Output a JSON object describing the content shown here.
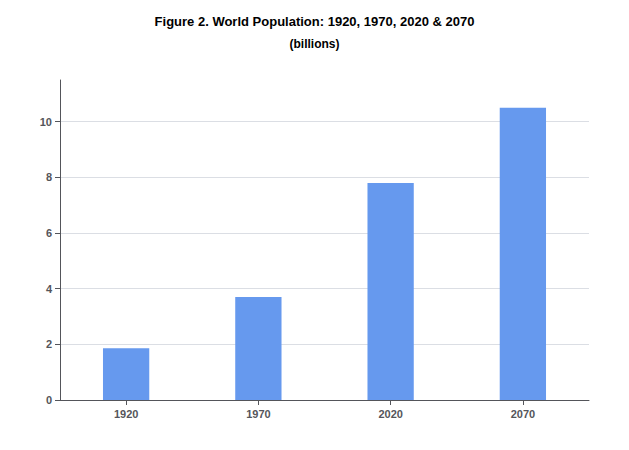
{
  "chart_data": {
    "type": "bar",
    "title": "Figure 2. World Population: 1920, 1970, 2020 & 2070",
    "subtitle": "(billions)",
    "categories": [
      "1920",
      "1970",
      "2020",
      "2070"
    ],
    "values": [
      1.86,
      3.7,
      7.8,
      10.5
    ],
    "color": "#6699ee",
    "ylim": [
      0,
      11.5
    ],
    "yticks": [
      0,
      2,
      4,
      6,
      8,
      10
    ],
    "grid": true
  }
}
